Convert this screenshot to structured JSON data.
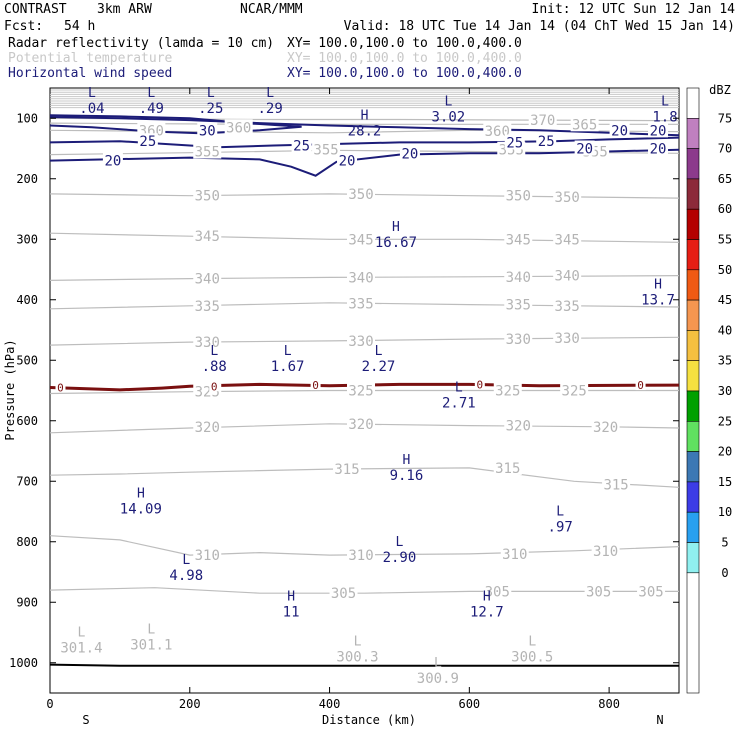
{
  "header": {
    "program": "CONTRAST",
    "model": "3km ARW",
    "org": "NCAR/MMM",
    "init": "Init: 12 UTC Sun 12 Jan 14",
    "fcst_label": "Fcst:",
    "fcst_value": "54 h",
    "valid": "Valid: 18 UTC Tue 14 Jan 14 (04 ChT Wed 15 Jan 14)",
    "fields": [
      {
        "name": "Radar reflectivity (lamda = 10 cm)",
        "xy": "XY= 100.0,100.0 to 100.0,400.0",
        "color": "#000000"
      },
      {
        "name": "Potential temperature",
        "xy": "XY= 100.0,100.0 to 100.0,400.0",
        "color": "#c8c8c8"
      },
      {
        "name": "Horizontal wind speed",
        "xy": "XY= 100.0,100.0 to 100.0,400.0",
        "color": "#1c1c78"
      }
    ]
  },
  "chart_data": {
    "type": "cross-section contour",
    "title": "Vertical cross section",
    "xlabel": "Distance (km)",
    "ylabel": "Pressure (hPa)",
    "xlim": [
      0,
      900
    ],
    "ylim": [
      1050,
      50
    ],
    "x_ticks": [
      0,
      200,
      400,
      600,
      800
    ],
    "y_ticks": [
      100,
      200,
      300,
      400,
      500,
      600,
      700,
      800,
      900,
      1000
    ],
    "endpoints": {
      "left": "S",
      "right": "N"
    },
    "colorbar": {
      "unit": "dBZ",
      "levels": [
        75,
        70,
        65,
        60,
        55,
        50,
        45,
        40,
        35,
        30,
        25,
        20,
        15,
        10,
        5,
        0
      ],
      "colors": [
        "#ffffff",
        "#c080c0",
        "#8c3a8c",
        "#8c2a3a",
        "#b40000",
        "#e61e14",
        "#f05a14",
        "#f59650",
        "#f5c040",
        "#f5e040",
        "#00a000",
        "#60e060",
        "#3c78b4",
        "#3c3ce6",
        "#28a0f0",
        "#90f0f0"
      ],
      "bottom_color": "#ffffff"
    },
    "theta_contours": [
      {
        "level": 305,
        "points": [
          [
            0,
            880
          ],
          [
            150,
            876
          ],
          [
            300,
            885
          ],
          [
            380,
            885
          ],
          [
            450,
            885
          ],
          [
            600,
            882
          ],
          [
            750,
            882
          ],
          [
            900,
            882
          ]
        ]
      },
      {
        "level": 310,
        "points": [
          [
            0,
            790
          ],
          [
            100,
            797
          ],
          [
            200,
            822
          ],
          [
            300,
            818
          ],
          [
            400,
            822
          ],
          [
            600,
            820
          ],
          [
            750,
            815
          ],
          [
            900,
            808
          ]
        ]
      },
      {
        "level": 315,
        "points": [
          [
            0,
            690
          ],
          [
            100,
            688
          ],
          [
            200,
            685
          ],
          [
            400,
            680
          ],
          [
            600,
            678
          ],
          [
            750,
            700
          ],
          [
            900,
            710
          ]
        ]
      },
      {
        "level": 320,
        "points": [
          [
            0,
            620
          ],
          [
            200,
            612
          ],
          [
            400,
            605
          ],
          [
            600,
            608
          ],
          [
            800,
            610
          ],
          [
            900,
            612
          ]
        ]
      },
      {
        "level": 325,
        "points": [
          [
            0,
            555
          ],
          [
            200,
            552
          ],
          [
            400,
            550
          ],
          [
            600,
            550
          ],
          [
            900,
            550
          ]
        ]
      },
      {
        "level": 330,
        "points": [
          [
            0,
            475
          ],
          [
            200,
            470
          ],
          [
            400,
            468
          ],
          [
            600,
            465
          ],
          [
            900,
            462
          ]
        ]
      },
      {
        "level": 335,
        "points": [
          [
            0,
            415
          ],
          [
            200,
            410
          ],
          [
            400,
            405
          ],
          [
            600,
            408
          ],
          [
            900,
            412
          ]
        ]
      },
      {
        "level": 340,
        "points": [
          [
            0,
            368
          ],
          [
            200,
            365
          ],
          [
            400,
            363
          ],
          [
            600,
            362
          ],
          [
            900,
            360
          ]
        ]
      },
      {
        "level": 345,
        "points": [
          [
            0,
            290
          ],
          [
            200,
            295
          ],
          [
            400,
            300
          ],
          [
            600,
            300
          ],
          [
            900,
            305
          ]
        ]
      },
      {
        "level": 350,
        "points": [
          [
            0,
            225
          ],
          [
            200,
            228
          ],
          [
            400,
            225
          ],
          [
            600,
            228
          ],
          [
            900,
            232
          ]
        ]
      },
      {
        "level": 355,
        "points": [
          [
            0,
            160
          ],
          [
            200,
            157
          ],
          [
            400,
            153
          ],
          [
            600,
            155
          ],
          [
            900,
            158
          ]
        ]
      },
      {
        "level": 360,
        "points": [
          [
            0,
            120
          ],
          [
            200,
            122
          ],
          [
            400,
            124
          ],
          [
            600,
            120
          ],
          [
            900,
            122
          ]
        ]
      },
      {
        "level": 365,
        "points": [
          [
            0,
            108
          ],
          [
            300,
            110
          ],
          [
            500,
            110
          ],
          [
            700,
            110
          ],
          [
            900,
            110
          ]
        ]
      },
      {
        "level": 370,
        "points": [
          [
            0,
            100
          ],
          [
            300,
            102
          ],
          [
            500,
            102
          ],
          [
            700,
            103
          ],
          [
            900,
            104
          ]
        ]
      }
    ],
    "theta_labels": [
      {
        "text": "360",
        "x": 145,
        "y": 120
      },
      {
        "text": "355",
        "x": 225,
        "y": 155
      },
      {
        "text": "360",
        "x": 270,
        "y": 115
      },
      {
        "text": "355",
        "x": 395,
        "y": 152
      },
      {
        "text": "360",
        "x": 640,
        "y": 121
      },
      {
        "text": "370",
        "x": 705,
        "y": 103
      },
      {
        "text": "365",
        "x": 765,
        "y": 110
      },
      {
        "text": "355",
        "x": 660,
        "y": 152
      },
      {
        "text": "355",
        "x": 780,
        "y": 155
      },
      {
        "text": "350",
        "x": 225,
        "y": 228
      },
      {
        "text": "350",
        "x": 445,
        "y": 225
      },
      {
        "text": "350",
        "x": 670,
        "y": 228
      },
      {
        "text": "350",
        "x": 740,
        "y": 230
      },
      {
        "text": "345",
        "x": 225,
        "y": 295
      },
      {
        "text": "345",
        "x": 445,
        "y": 300
      },
      {
        "text": "345",
        "x": 670,
        "y": 300
      },
      {
        "text": "345",
        "x": 740,
        "y": 300
      },
      {
        "text": "340",
        "x": 225,
        "y": 365
      },
      {
        "text": "340",
        "x": 445,
        "y": 363
      },
      {
        "text": "340",
        "x": 670,
        "y": 362
      },
      {
        "text": "340",
        "x": 740,
        "y": 360
      },
      {
        "text": "335",
        "x": 225,
        "y": 410
      },
      {
        "text": "335",
        "x": 445,
        "y": 406
      },
      {
        "text": "335",
        "x": 670,
        "y": 408
      },
      {
        "text": "335",
        "x": 740,
        "y": 410
      },
      {
        "text": "330",
        "x": 225,
        "y": 470
      },
      {
        "text": "330",
        "x": 445,
        "y": 468
      },
      {
        "text": "330",
        "x": 670,
        "y": 465
      },
      {
        "text": "330",
        "x": 740,
        "y": 463
      },
      {
        "text": "325",
        "x": 225,
        "y": 552
      },
      {
        "text": "325",
        "x": 445,
        "y": 550
      },
      {
        "text": "325",
        "x": 655,
        "y": 550
      },
      {
        "text": "325",
        "x": 750,
        "y": 550
      },
      {
        "text": "320",
        "x": 225,
        "y": 610
      },
      {
        "text": "320",
        "x": 445,
        "y": 605
      },
      {
        "text": "320",
        "x": 670,
        "y": 608
      },
      {
        "text": "320",
        "x": 795,
        "y": 610
      },
      {
        "text": "315",
        "x": 425,
        "y": 680
      },
      {
        "text": "315",
        "x": 655,
        "y": 678
      },
      {
        "text": "315",
        "x": 810,
        "y": 705
      },
      {
        "text": "310",
        "x": 225,
        "y": 822
      },
      {
        "text": "310",
        "x": 445,
        "y": 822
      },
      {
        "text": "310",
        "x": 665,
        "y": 820
      },
      {
        "text": "310",
        "x": 795,
        "y": 815
      },
      {
        "text": "305",
        "x": 420,
        "y": 885
      },
      {
        "text": "305",
        "x": 640,
        "y": 882
      },
      {
        "text": "305",
        "x": 785,
        "y": 882
      },
      {
        "text": "305",
        "x": 860,
        "y": 882
      }
    ],
    "wind_contours": [
      {
        "level": 20,
        "points": [
          [
            0,
            170
          ],
          [
            80,
            168
          ],
          [
            200,
            165
          ],
          [
            300,
            168
          ],
          [
            345,
            180
          ],
          [
            380,
            195
          ],
          [
            410,
            172
          ],
          [
            500,
            160
          ],
          [
            600,
            158
          ],
          [
            700,
            158
          ],
          [
            900,
            152
          ]
        ]
      },
      {
        "level": 25,
        "points": [
          [
            0,
            140
          ],
          [
            100,
            138
          ],
          [
            200,
            145
          ],
          [
            240,
            148
          ],
          [
            320,
            145
          ],
          [
            420,
            142
          ],
          [
            500,
            140
          ],
          [
            600,
            140
          ],
          [
            720,
            138
          ],
          [
            800,
            135
          ],
          [
            900,
            132
          ]
        ]
      },
      {
        "level": 20,
        "points": [
          [
            0,
            98
          ],
          [
            100,
            100
          ],
          [
            200,
            103
          ],
          [
            300,
            108
          ],
          [
            400,
            112
          ],
          [
            500,
            115
          ],
          [
            600,
            118
          ],
          [
            700,
            120
          ],
          [
            800,
            124
          ],
          [
            900,
            128
          ]
        ]
      },
      {
        "level": 30,
        "points": [
          [
            0,
            95
          ],
          [
            100,
            97
          ],
          [
            200,
            100
          ],
          [
            280,
            108
          ],
          [
            360,
            114
          ],
          [
            300,
            120
          ],
          [
            220,
            125
          ],
          [
            150,
            122
          ],
          [
            60,
            115
          ],
          [
            0,
            112
          ]
        ]
      }
    ],
    "wind_labels": [
      {
        "text": "20",
        "x": 90,
        "y": 170
      },
      {
        "text": "25",
        "x": 140,
        "y": 138
      },
      {
        "text": "30",
        "x": 225,
        "y": 120
      },
      {
        "text": "25",
        "x": 360,
        "y": 145
      },
      {
        "text": "20",
        "x": 425,
        "y": 170
      },
      {
        "text": "20",
        "x": 515,
        "y": 158
      },
      {
        "text": "25",
        "x": 665,
        "y": 140
      },
      {
        "text": "25",
        "x": 710,
        "y": 138
      },
      {
        "text": "20",
        "x": 765,
        "y": 150
      },
      {
        "text": "20",
        "x": 815,
        "y": 120
      },
      {
        "text": "20",
        "x": 870,
        "y": 120
      },
      {
        "text": "20",
        "x": 870,
        "y": 150
      }
    ],
    "reflectivity_zero_contour": {
      "level": 0,
      "points": [
        [
          0,
          545
        ],
        [
          100,
          549
        ],
        [
          160,
          546
        ],
        [
          200,
          543
        ],
        [
          300,
          540
        ],
        [
          400,
          542
        ],
        [
          500,
          540
        ],
        [
          600,
          540
        ],
        [
          700,
          542
        ],
        [
          900,
          541
        ]
      ]
    },
    "reflectivity_labels": [
      {
        "text": "0",
        "x": 15,
        "y": 545
      },
      {
        "text": "0",
        "x": 235,
        "y": 543
      },
      {
        "text": "0",
        "x": 380,
        "y": 541
      },
      {
        "text": "0",
        "x": 615,
        "y": 540
      },
      {
        "text": "0",
        "x": 845,
        "y": 541
      }
    ],
    "extrema_wind": [
      {
        "type": "L",
        "value": ".04",
        "x": 60,
        "y": 68,
        "label_above": true
      },
      {
        "type": "L",
        "value": ".49",
        "x": 145,
        "y": 68,
        "label_above": true
      },
      {
        "type": "L",
        "value": ".25",
        "x": 230,
        "y": 68,
        "label_above": true
      },
      {
        "type": "L",
        "value": ".29",
        "x": 315,
        "y": 68,
        "label_above": true
      },
      {
        "type": "L",
        "value": "3.02",
        "x": 570,
        "y": 82,
        "label_above": true
      },
      {
        "type": "L",
        "value": "1.8",
        "x": 880,
        "y": 82,
        "label_above": true
      },
      {
        "type": "H",
        "value": "28.2",
        "x": 450,
        "y": 105,
        "label_above": true
      },
      {
        "type": "H",
        "value": "16.67",
        "x": 495,
        "y": 290,
        "label_above": true
      },
      {
        "type": "H",
        "value": "13.7",
        "x": 870,
        "y": 385,
        "label_above": true
      },
      {
        "type": "L",
        "value": ".88",
        "x": 235,
        "y": 495,
        "label_above": true
      },
      {
        "type": "L",
        "value": "1.67",
        "x": 340,
        "y": 495,
        "label_above": true
      },
      {
        "type": "L",
        "value": "2.27",
        "x": 470,
        "y": 495,
        "label_above": true
      },
      {
        "type": "L",
        "value": "2.71",
        "x": 585,
        "y": 555,
        "label_above": true
      },
      {
        "type": "H",
        "value": "9.16",
        "x": 510,
        "y": 675,
        "label_above": true
      },
      {
        "type": "H",
        "value": "14.09",
        "x": 130,
        "y": 730,
        "label_above": true
      },
      {
        "type": "L",
        "value": ".97",
        "x": 730,
        "y": 760,
        "label_above": true
      },
      {
        "type": "L",
        "value": "2.90",
        "x": 500,
        "y": 810,
        "label_above": true
      },
      {
        "type": "L",
        "value": "4.98",
        "x": 195,
        "y": 840,
        "label_above": true
      },
      {
        "type": "H",
        "value": "11",
        "x": 345,
        "y": 900,
        "label_above": true
      },
      {
        "type": "H",
        "value": "12.7",
        "x": 625,
        "y": 900,
        "label_above": true
      }
    ],
    "extrema_theta": [
      {
        "type": "L",
        "value": "301.4",
        "x": 45,
        "y": 960
      },
      {
        "type": "L",
        "value": "301.1",
        "x": 145,
        "y": 955
      },
      {
        "type": "L",
        "value": "300.3",
        "x": 440,
        "y": 975
      },
      {
        "type": "L",
        "value": "300.9",
        "x": 555,
        "y": 1010
      },
      {
        "type": "L",
        "value": "300.5",
        "x": 690,
        "y": 975
      }
    ],
    "surface": {
      "points": [
        [
          0,
          1003
        ],
        [
          100,
          1005
        ],
        [
          300,
          1005
        ],
        [
          500,
          1005
        ],
        [
          700,
          1005
        ],
        [
          900,
          1005
        ]
      ]
    }
  }
}
